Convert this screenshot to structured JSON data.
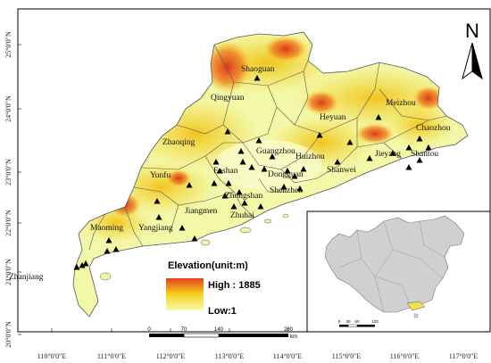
{
  "map": {
    "north_label": "N",
    "cities": [
      {
        "name": "Shaoguan"
      },
      {
        "name": "Qingyuan"
      },
      {
        "name": "Meizhou"
      },
      {
        "name": "Heyuan"
      },
      {
        "name": "Chaozhou"
      },
      {
        "name": "Zhaoqing"
      },
      {
        "name": "Guangzhou"
      },
      {
        "name": "Huizhou"
      },
      {
        "name": "Jieyang"
      },
      {
        "name": "Shantou"
      },
      {
        "name": "Yunfu"
      },
      {
        "name": "Foshan"
      },
      {
        "name": "Dongguan"
      },
      {
        "name": "Shanwei"
      },
      {
        "name": "Zhongshan"
      },
      {
        "name": "Shenzhen"
      },
      {
        "name": "Jiangmen"
      },
      {
        "name": "Zhuhai"
      },
      {
        "name": "Maoming"
      },
      {
        "name": "Yangjiang"
      },
      {
        "name": "Zhanjiang"
      }
    ],
    "lat_labels": [
      "25°0'0\"N",
      "24°0'0\"N",
      "23°0'0\"N",
      "22°0'0\"N",
      "21°0'0\"N",
      "20°0'0\"N"
    ],
    "lon_labels": [
      "110°0'0\"E",
      "111°0'0\"E",
      "112°0'0\"E",
      "113°0'0\"E",
      "114°0'0\"E",
      "115°0'0\"E",
      "116°0'0\"E",
      "117°0'0\"E"
    ],
    "legend": {
      "title": "Elevation(unit:m)",
      "high_label": "High : 1885",
      "low_label": "Low:1",
      "high_color": "#e8401c",
      "mid_color": "#f5d21e",
      "low_color": "#f4fbb0"
    },
    "scale_bar": {
      "ticks": [
        "0",
        "70",
        "140",
        "280"
      ],
      "unit": "km"
    },
    "inset": {
      "ticks": [
        "0",
        "30",
        "60",
        "120"
      ]
    },
    "colors": {
      "terrain_low": "#f3f7a8",
      "terrain_mid": "#f2dc3a",
      "terrain_high": "#d9391a",
      "boundary": "#555555",
      "china_fill": "#d0d0d0",
      "guangdong_inset": "#f0e050"
    }
  }
}
